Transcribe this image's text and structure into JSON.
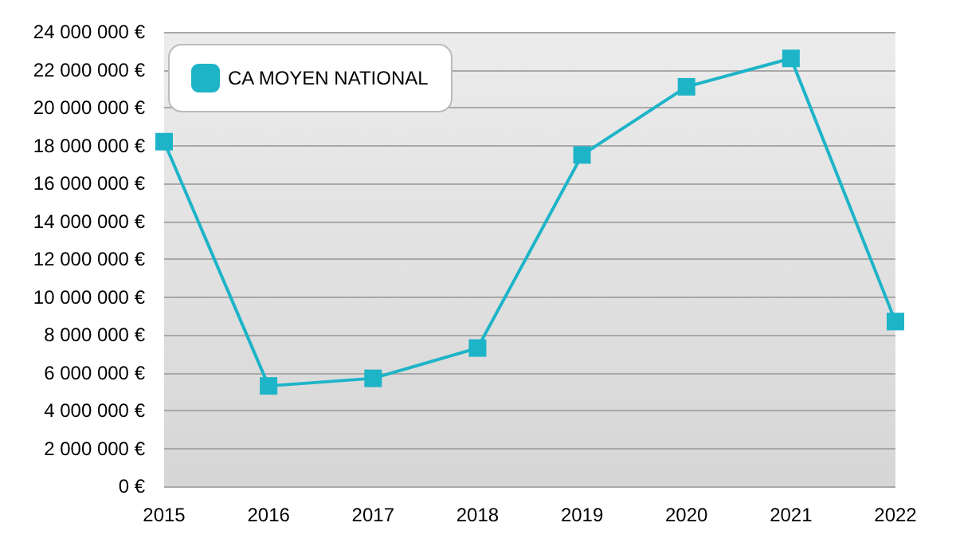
{
  "chart_data": {
    "type": "line",
    "categories": [
      "2015",
      "2016",
      "2017",
      "2018",
      "2019",
      "2020",
      "2021",
      "2022"
    ],
    "series": [
      {
        "name": "CA MOYEN NATIONAL",
        "color": "#1eb4c8",
        "values": [
          18200000,
          5300000,
          5700000,
          7300000,
          17500000,
          21100000,
          22600000,
          8700000
        ]
      }
    ],
    "ylim": [
      0,
      24000000
    ],
    "yticks": [
      {
        "value": 0,
        "label": "0 €"
      },
      {
        "value": 2000000,
        "label": "2 000 000 €"
      },
      {
        "value": 4000000,
        "label": "4 000 000 €"
      },
      {
        "value": 6000000,
        "label": "6 000 000 €"
      },
      {
        "value": 8000000,
        "label": "8 000 000 €"
      },
      {
        "value": 10000000,
        "label": "10 000 000 €"
      },
      {
        "value": 12000000,
        "label": "12 000 000 €"
      },
      {
        "value": 14000000,
        "label": "14 000 000 €"
      },
      {
        "value": 16000000,
        "label": "16 000 000 €"
      },
      {
        "value": 18000000,
        "label": "18 000 000 €"
      },
      {
        "value": 20000000,
        "label": "20 000 000 €"
      },
      {
        "value": 22000000,
        "label": "22 000 000 €"
      },
      {
        "value": 24000000,
        "label": "24 000 000 €"
      }
    ],
    "grid": "y",
    "legend": "top left",
    "marker": "square",
    "line_style": "solid"
  }
}
